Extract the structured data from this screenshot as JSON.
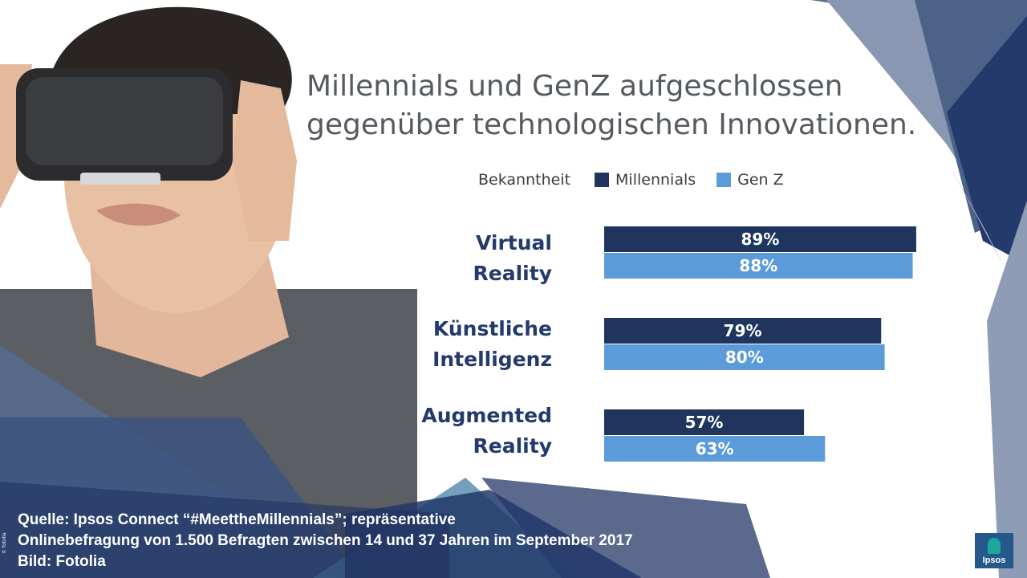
{
  "title": {
    "line1": "Millennials und GenZ aufgeschlossen",
    "line2": "gegenüber technologischen Innovationen."
  },
  "legend": {
    "heading": "Bekanntheit",
    "items": [
      {
        "label": "Millennials",
        "color": "#1f355e"
      },
      {
        "label": "Gen Z",
        "color": "#5b9bd9"
      }
    ]
  },
  "chart_data": {
    "type": "bar",
    "orientation": "horizontal",
    "categories": [
      [
        "Virtual",
        "Reality"
      ],
      [
        "Künstliche",
        "Intelligenz"
      ],
      [
        "Augmented",
        "Reality"
      ]
    ],
    "series": [
      {
        "name": "Millennials",
        "values": [
          89,
          79,
          57
        ],
        "labels": [
          "89%",
          "79%",
          "57%"
        ],
        "color": "#1f355e"
      },
      {
        "name": "Gen Z",
        "values": [
          88,
          80,
          63
        ],
        "labels": [
          "88%",
          "80%",
          "63%"
        ],
        "color": "#5b9bd9"
      }
    ],
    "xlim": [
      0,
      100
    ],
    "unit": "%",
    "grid": false,
    "legend_position": "top"
  },
  "source": {
    "line1": "Quelle: Ipsos Connect “#MeettheMillennials”; repräsentative",
    "line2": "Onlinebefragung von 1.500 Befragten zwischen 14 und 37 Jahren im September 2017",
    "line3": "Bild: Fotolia"
  },
  "credit_small": "© fotolia",
  "logo": {
    "text": "Ipsos"
  },
  "colors": {
    "accent_dark": "#1f355e",
    "accent_light": "#5b9bd9",
    "label_text": "#233a6b",
    "title_text": "#555a60"
  }
}
